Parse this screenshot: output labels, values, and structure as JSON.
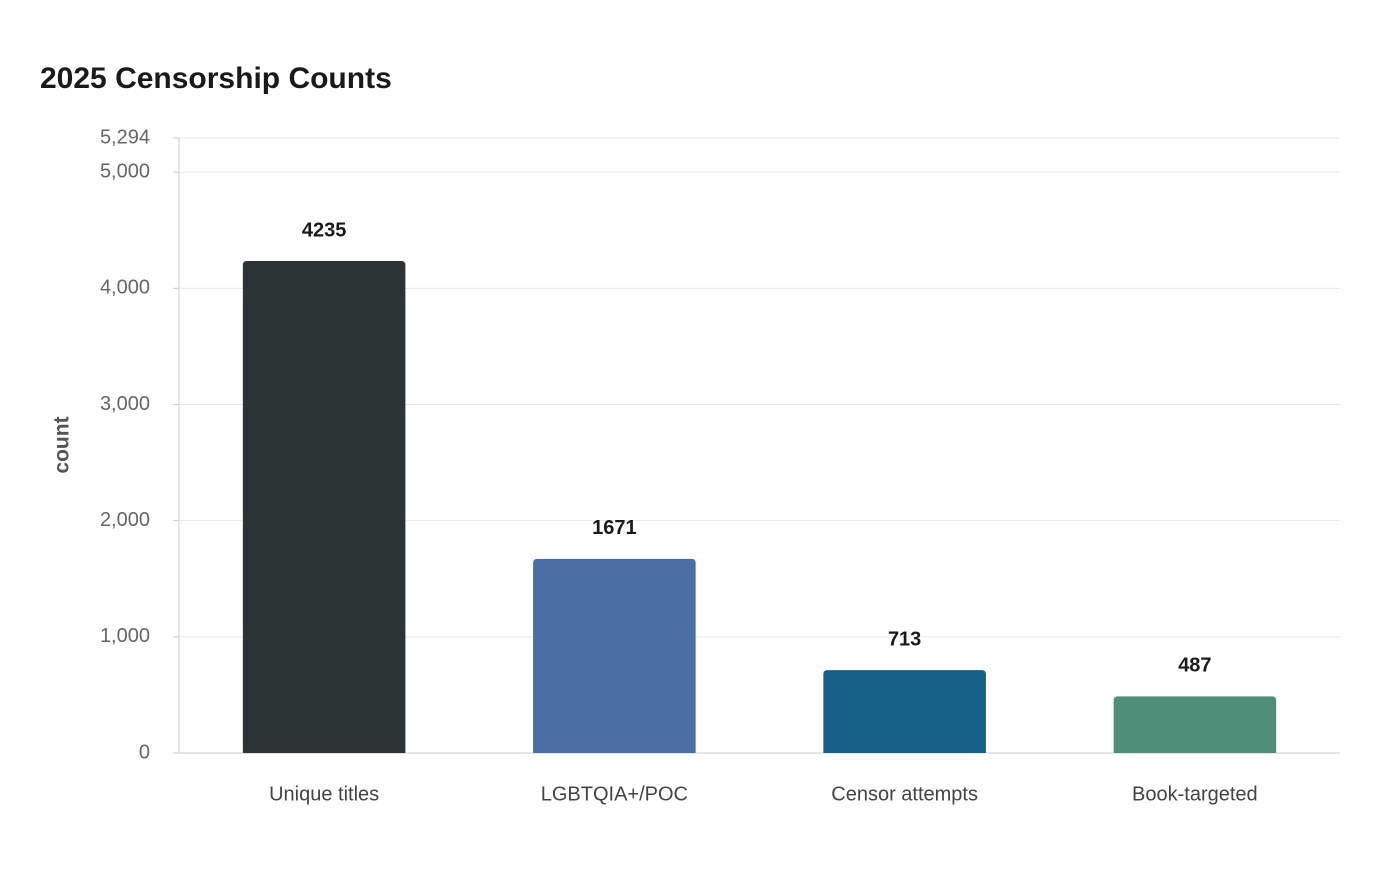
{
  "chart_data": {
    "type": "bar",
    "title": "2025 Censorship Counts",
    "y_label": "count",
    "categories": [
      "Unique titles",
      "LGBTQIA+/POC",
      "Censor attempts",
      "Book-targeted"
    ],
    "values": [
      4235,
      1671,
      713,
      487
    ],
    "colors": [
      "#2d3436",
      "#4a6fa5",
      "#166088",
      "#4f8f7a"
    ],
    "ylim": [
      0,
      5294
    ],
    "yticks": [
      0,
      {
        "value": 1000,
        "label": "1,000"
      },
      {
        "value": 2000,
        "label": "2,000"
      },
      {
        "value": 3000,
        "label": "3,000"
      },
      {
        "value": 4000,
        "label": "4,000"
      },
      {
        "value": 5000,
        "label": "5,000"
      },
      {
        "value": 5294,
        "label": "5,294"
      }
    ],
    "grid": true
  }
}
